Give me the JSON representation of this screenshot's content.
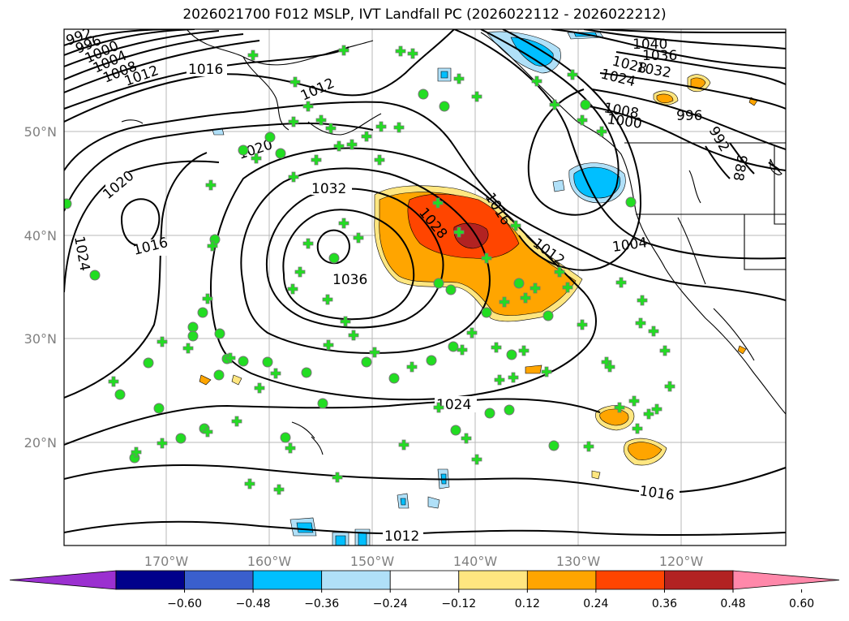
{
  "title": "2026021700 F012 MSLP, IVT Landfall PC (2026022112 - 2026022212)",
  "map": {
    "lon_labels": [
      "170°W",
      "160°W",
      "150°W",
      "140°W",
      "130°W",
      "120°W"
    ],
    "lat_labels": [
      "50°N",
      "40°N",
      "30°N",
      "20°N"
    ],
    "contour_labels": [
      {
        "text": "992"
      },
      {
        "text": "996"
      },
      {
        "text": "1000"
      },
      {
        "text": "1004"
      },
      {
        "text": "1008"
      },
      {
        "text": "1012"
      },
      {
        "text": "1016"
      },
      {
        "text": "1012"
      },
      {
        "text": "1020"
      },
      {
        "text": "1024"
      },
      {
        "text": "1016"
      },
      {
        "text": "1020"
      },
      {
        "text": "1032"
      },
      {
        "text": "1028"
      },
      {
        "text": "1016"
      },
      {
        "text": "1012"
      },
      {
        "text": "1036"
      },
      {
        "text": "1004"
      },
      {
        "text": "1040"
      },
      {
        "text": "1036"
      },
      {
        "text": "1032"
      },
      {
        "text": "1028"
      },
      {
        "text": "1024"
      },
      {
        "text": "1008"
      },
      {
        "text": "1000"
      },
      {
        "text": "996"
      },
      {
        "text": "992"
      },
      {
        "text": "988"
      },
      {
        "text": "1024"
      },
      {
        "text": "1016"
      },
      {
        "text": "1012"
      }
    ],
    "colors": {
      "land_coast": "#000000",
      "grid": "#b0b0b0",
      "station": "#22dd22",
      "station_edge": "#777777"
    }
  },
  "colorbar": {
    "ticks": [
      "−0.60",
      "−0.48",
      "−0.36",
      "−0.24",
      "−0.12",
      "0.12",
      "0.24",
      "0.36",
      "0.48",
      "0.60"
    ],
    "colors": [
      "#9b30d0",
      "#00008b",
      "#3a5fcd",
      "#00bfff",
      "#b0e0f8",
      "#ffffff",
      "#ffe680",
      "#ffa500",
      "#ff4500",
      "#b22222",
      "#ff88aa"
    ]
  }
}
